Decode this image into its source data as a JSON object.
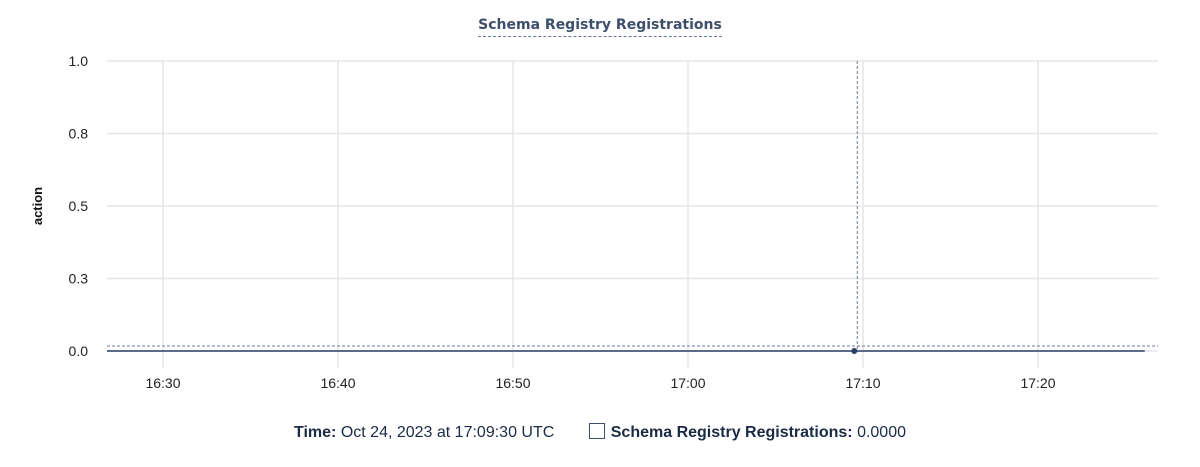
{
  "chart_data": {
    "type": "line",
    "title": "Schema Registry Registrations",
    "ylabel": "action",
    "xlabel": "",
    "ylim": [
      0,
      1
    ],
    "y_ticks": [
      {
        "value": 0,
        "label": "0.0"
      },
      {
        "value": 0.25,
        "label": "0.3"
      },
      {
        "value": 0.5,
        "label": "0.5"
      },
      {
        "value": 0.75,
        "label": "0.8"
      },
      {
        "value": 1,
        "label": "1.0"
      }
    ],
    "xlim": [
      "16:26:48",
      "17:26:06"
    ],
    "x_ticks": [
      "16:30",
      "16:40",
      "16:50",
      "17:00",
      "17:10",
      "17:20"
    ],
    "grid": true,
    "series": [
      {
        "name": "Schema Registry Registrations",
        "color": "#2b3f63",
        "x": [
          "16:26:48",
          "17:26:06"
        ],
        "values": [
          0,
          0
        ]
      }
    ],
    "hover": {
      "x": "17:09:30",
      "value": 0
    }
  },
  "legend": {
    "time_label": "Time:",
    "time_value": "Oct 24, 2023 at 17:09:30 UTC",
    "series_label": "Schema Registry Registrations:",
    "series_value": "0.0000"
  }
}
